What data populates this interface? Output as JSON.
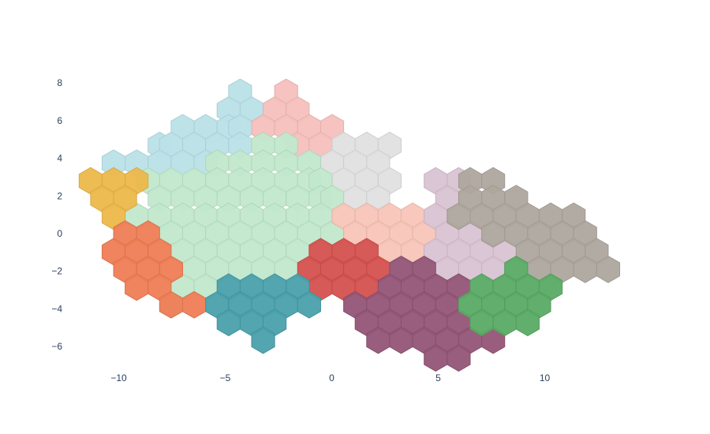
{
  "chart_data": {
    "type": "hexbin",
    "title": "",
    "xlabel": "",
    "ylabel": "",
    "xlim": [
      -12,
      13.5
    ],
    "ylim": [
      -7.2,
      9.0
    ],
    "grid": false,
    "legend": "none",
    "x_ticks": [
      {
        "value": -10,
        "label": "−10"
      },
      {
        "value": -5,
        "label": "−5"
      },
      {
        "value": 0,
        "label": "0"
      },
      {
        "value": 5,
        "label": "5"
      },
      {
        "value": 10,
        "label": "10"
      }
    ],
    "y_ticks": [
      {
        "value": 8,
        "label": "8"
      },
      {
        "value": 6,
        "label": "6"
      },
      {
        "value": 4,
        "label": "4"
      },
      {
        "value": 2,
        "label": "2"
      },
      {
        "value": 0,
        "label": "0"
      },
      {
        "value": -2,
        "label": "−2"
      },
      {
        "value": -4,
        "label": "−4"
      },
      {
        "value": -6,
        "label": "−6"
      }
    ],
    "hex_col_step": 1.08,
    "hex_row_step": 0.94,
    "series": [
      {
        "color": "#b9e2e8",
        "rows": [
          {
            "y": 7.5,
            "x": [
              -4.3
            ]
          },
          {
            "y": 6.56,
            "x": [
              -4.84,
              -3.76
            ]
          },
          {
            "y": 5.62,
            "x": [
              -7.0,
              -5.92,
              -4.84,
              -4.3
            ]
          },
          {
            "y": 4.68,
            "x": [
              -8.08,
              -7.54,
              -6.46,
              -5.38,
              -4.3
            ]
          },
          {
            "y": 3.74,
            "x": [
              -10.24,
              -9.16,
              -8.08,
              -7.0,
              -5.92
            ]
          }
        ]
      },
      {
        "color": "#f5c0bd",
        "rows": [
          {
            "y": 7.5,
            "x": [
              -2.14
            ]
          },
          {
            "y": 6.56,
            "x": [
              -2.68,
              -1.6
            ]
          },
          {
            "y": 5.62,
            "x": [
              -3.22,
              -2.14,
              -1.06,
              0.02
            ]
          },
          {
            "y": 4.68,
            "x": [
              -1.6,
              -0.52
            ]
          }
        ]
      },
      {
        "color": "#e0e0e0",
        "rows": [
          {
            "y": 4.68,
            "x": [
              0.56,
              1.64,
              2.72
            ]
          },
          {
            "y": 3.74,
            "x": [
              0.02,
              1.1,
              2.18
            ]
          },
          {
            "y": 2.8,
            "x": [
              0.56,
              1.64,
              2.72
            ]
          },
          {
            "y": 1.86,
            "x": [
              1.1,
              2.18
            ]
          }
        ]
      },
      {
        "color": "#c1e8cc",
        "rows": [
          {
            "y": 4.68,
            "x": [
              -3.22,
              -2.14
            ]
          },
          {
            "y": 3.74,
            "x": [
              -5.38,
              -4.3,
              -3.22,
              -2.14,
              -1.06
            ]
          },
          {
            "y": 2.8,
            "x": [
              -8.62,
              -7.54,
              -6.46,
              -5.38,
              -4.3,
              -3.22,
              -2.14,
              -1.06,
              -0.52
            ]
          },
          {
            "y": 1.86,
            "x": [
              -8.08,
              -7.0,
              -5.92,
              -4.84,
              -3.76,
              -2.68,
              -1.6,
              -0.52,
              0.02
            ]
          },
          {
            "y": 0.92,
            "x": [
              -9.16,
              -8.08,
              -7.0,
              -5.92,
              -4.84,
              -3.76,
              -2.68,
              -1.6,
              -0.52
            ]
          },
          {
            "y": -0.02,
            "x": [
              -7.54,
              -6.46,
              -5.38,
              -4.3,
              -3.22,
              -2.14,
              -1.06,
              0.02
            ]
          },
          {
            "y": -0.96,
            "x": [
              -7.0,
              -5.92,
              -4.84,
              -3.76,
              -2.68,
              -1.6
            ]
          },
          {
            "y": -1.9,
            "x": [
              -6.46,
              -5.38,
              -4.3,
              -3.22,
              -2.14
            ]
          },
          {
            "y": -2.84,
            "x": [
              -7.0,
              -5.92
            ]
          },
          {
            "y": -3.78,
            "x": [
              -7.54
            ]
          }
        ]
      },
      {
        "color": "#f7c5b7",
        "rows": [
          {
            "y": 0.92,
            "x": [
              0.56,
              1.64,
              2.72,
              3.8
            ]
          },
          {
            "y": -0.02,
            "x": [
              1.1,
              2.18,
              3.26,
              4.34
            ]
          },
          {
            "y": -0.96,
            "x": [
              2.72,
              3.8
            ]
          }
        ]
      },
      {
        "color": "#d9c3d3",
        "rows": [
          {
            "y": 2.8,
            "x": [
              4.88,
              5.96
            ]
          },
          {
            "y": 1.86,
            "x": [
              5.42
            ]
          },
          {
            "y": 0.92,
            "x": [
              4.88
            ]
          },
          {
            "y": -0.02,
            "x": [
              5.42,
              6.5
            ]
          },
          {
            "y": -0.96,
            "x": [
              4.88,
              5.96,
              7.04,
              8.12
            ]
          },
          {
            "y": -1.9,
            "x": [
              5.42,
              6.5,
              7.58
            ]
          }
        ]
      },
      {
        "color": "#aea79e",
        "rows": [
          {
            "y": 2.8,
            "x": [
              6.5,
              7.58
            ]
          },
          {
            "y": 1.86,
            "x": [
              6.5,
              7.58,
              8.66
            ]
          },
          {
            "y": 0.92,
            "x": [
              5.96,
              7.04,
              8.12,
              9.2,
              10.28,
              11.36
            ]
          },
          {
            "y": -0.02,
            "x": [
              7.58,
              8.66,
              9.74,
              10.82,
              11.9
            ]
          },
          {
            "y": -0.96,
            "x": [
              9.2,
              10.28,
              11.36,
              12.44
            ]
          },
          {
            "y": -1.9,
            "x": [
              9.74,
              10.82,
              11.9,
              12.98
            ]
          }
        ]
      },
      {
        "color": "#ecb84a",
        "rows": [
          {
            "y": 2.8,
            "x": [
              -11.32,
              -10.24,
              -9.16
            ]
          },
          {
            "y": 1.86,
            "x": [
              -10.78,
              -9.7
            ]
          },
          {
            "y": 0.92,
            "x": [
              -10.24
            ]
          }
        ]
      },
      {
        "color": "#ee7d55",
        "rows": [
          {
            "y": -0.02,
            "x": [
              -9.7,
              -8.62
            ]
          },
          {
            "y": -0.96,
            "x": [
              -10.24,
              -9.16,
              -8.08
            ]
          },
          {
            "y": -1.9,
            "x": [
              -9.7,
              -8.62,
              -7.54
            ]
          },
          {
            "y": -2.84,
            "x": [
              -9.16,
              -8.08
            ]
          },
          {
            "y": -3.78,
            "x": [
              -7.54,
              -6.46
            ]
          }
        ]
      },
      {
        "color": "#d4514e",
        "rows": [
          {
            "y": -0.96,
            "x": [
              -0.52,
              0.56,
              1.64
            ]
          },
          {
            "y": -1.9,
            "x": [
              -1.06,
              0.02,
              1.1,
              2.18
            ]
          },
          {
            "y": -2.84,
            "x": [
              -0.52,
              0.56,
              1.64
            ]
          }
        ]
      },
      {
        "color": "#4aa0ab",
        "rows": [
          {
            "y": -2.84,
            "x": [
              -4.84,
              -3.76,
              -2.68,
              -1.6
            ]
          },
          {
            "y": -3.78,
            "x": [
              -5.38,
              -4.3,
              -3.22,
              -2.14,
              -1.06
            ]
          },
          {
            "y": -4.72,
            "x": [
              -4.84,
              -3.76,
              -2.68
            ]
          },
          {
            "y": -5.66,
            "x": [
              -3.22
            ]
          }
        ]
      },
      {
        "color": "#945577",
        "rows": [
          {
            "y": -1.9,
            "x": [
              3.26,
              4.34
            ]
          },
          {
            "y": -2.84,
            "x": [
              2.72,
              3.8,
              4.88,
              5.96
            ]
          },
          {
            "y": -3.78,
            "x": [
              1.1,
              2.18,
              3.26,
              4.34,
              5.42
            ]
          },
          {
            "y": -4.72,
            "x": [
              1.64,
              2.72,
              3.8,
              4.88,
              5.96
            ]
          },
          {
            "y": -5.66,
            "x": [
              2.18,
              3.26,
              4.34,
              5.42,
              6.5,
              7.58
            ]
          },
          {
            "y": -6.6,
            "x": [
              4.88,
              5.96
            ]
          }
        ]
      },
      {
        "color": "#5aab65",
        "rows": [
          {
            "y": -1.9,
            "x": [
              8.66
            ]
          },
          {
            "y": -2.84,
            "x": [
              7.04,
              8.12,
              9.2,
              10.28
            ]
          },
          {
            "y": -3.78,
            "x": [
              6.5,
              7.58,
              8.66,
              9.74
            ]
          },
          {
            "y": -4.72,
            "x": [
              7.04,
              8.12,
              9.2
            ]
          }
        ]
      }
    ]
  }
}
